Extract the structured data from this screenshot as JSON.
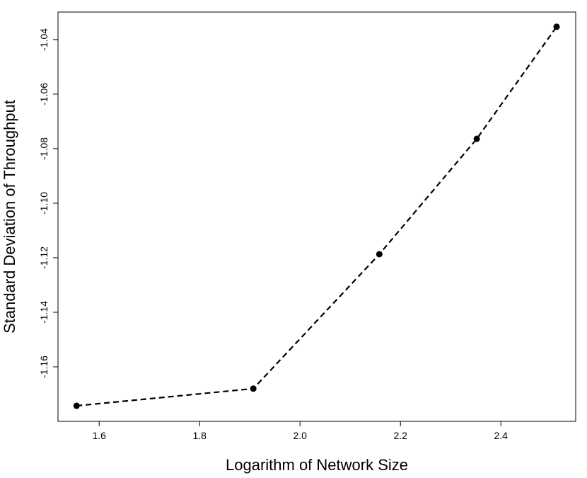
{
  "chart_data": {
    "type": "line",
    "x_label": "Logarithm of Network Size",
    "y_label": "Standard Deviation of Throughput",
    "x": [
      1.555,
      1.907,
      2.158,
      2.352,
      2.511
    ],
    "values": [
      -1.1743,
      -1.168,
      -1.1187,
      -1.0764,
      -1.0353
    ],
    "color": "#000000",
    "line_style": "dashed",
    "xlim": [
      1.518,
      2.549
    ],
    "ylim": [
      -1.18,
      -1.0299
    ],
    "xticks": [
      1.6,
      1.8,
      {
        "value": 2,
        "label": "2.0"
      },
      2.2,
      2.4
    ],
    "yticks": [
      -1.16,
      -1.14,
      -1.12,
      {
        "value": -1.1,
        "label": "-1.10"
      },
      -1.08,
      -1.06,
      -1.04
    ],
    "grid": false
  }
}
